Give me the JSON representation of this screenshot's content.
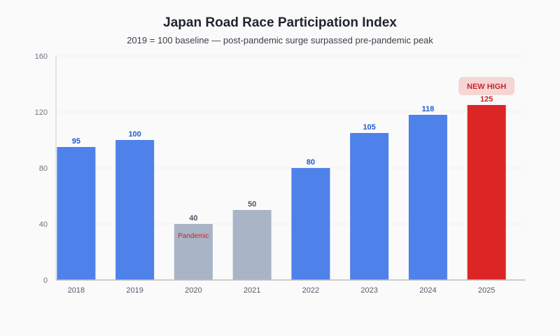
{
  "chart_data": {
    "type": "bar",
    "title": "Japan Road Race Participation Index",
    "subtitle": "2019 = 100 baseline — post-pandemic surge surpassed pre-pandemic peak",
    "xlabel": "",
    "ylabel": "",
    "ylim": [
      0,
      160
    ],
    "yticks": [
      0,
      40,
      80,
      120,
      160
    ],
    "grid": true,
    "categories": [
      "2018",
      "2019",
      "2020",
      "2021",
      "2022",
      "2023",
      "2024",
      "2025"
    ],
    "values": [
      95,
      100,
      40,
      50,
      80,
      105,
      118,
      125
    ],
    "value_labels": [
      "95",
      "100",
      "40",
      "50",
      "80",
      "105",
      "118",
      "125"
    ],
    "bar_groups": [
      "normal",
      "normal",
      "pandemic",
      "pandemic",
      "normal",
      "normal",
      "normal",
      "record"
    ],
    "colors": {
      "normal": "#4f81ea",
      "pandemic": "#a9b4c6",
      "record": "#dc2626",
      "normal_label": "#1f5bd0",
      "pandemic_label": "#4b5563",
      "record_label": "#c62828",
      "badge_fill": "#f6d5d5"
    },
    "annotations": [
      {
        "category": "2020",
        "text": "Pandemic",
        "style": "inside-bar"
      },
      {
        "category": "2025",
        "text": "NEW HIGH",
        "style": "badge"
      }
    ]
  }
}
